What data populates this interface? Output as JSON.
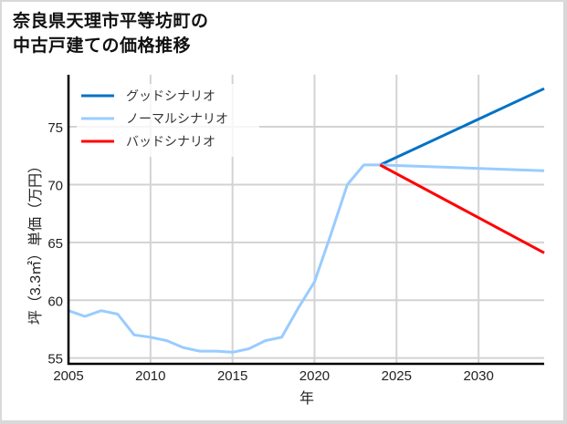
{
  "title_lines": [
    "奈良県天理市平等坊町の",
    "中古戸建ての価格推移"
  ],
  "chart_data": {
    "type": "line",
    "title": "奈良県天理市平等坊町の中古戸建ての価格推移",
    "xlabel": "年",
    "ylabel": "坪（3.3㎡）単価（万円）",
    "xlim": [
      2005,
      2034
    ],
    "ylim": [
      54.5,
      79.5
    ],
    "xticks": [
      2005,
      2010,
      2015,
      2020,
      2025,
      2030
    ],
    "yticks": [
      55,
      60,
      65,
      70,
      75
    ],
    "grid": true,
    "legend_position": "upper left",
    "series": [
      {
        "name": "グッドシナリオ",
        "color": "#0072c6",
        "x": [
          2024,
          2034
        ],
        "values": [
          71.7,
          78.3
        ]
      },
      {
        "name": "ノーマルシナリオ",
        "color": "#99ccff",
        "x": [
          2005,
          2006,
          2007,
          2008,
          2009,
          2010,
          2011,
          2012,
          2013,
          2014,
          2015,
          2016,
          2017,
          2018,
          2019,
          2020,
          2021,
          2022,
          2023,
          2024,
          2034
        ],
        "values": [
          59.1,
          58.6,
          59.1,
          58.8,
          57.0,
          56.8,
          56.5,
          55.9,
          55.6,
          55.6,
          55.5,
          55.8,
          56.5,
          56.8,
          59.3,
          61.6,
          65.7,
          70.0,
          71.7,
          71.7,
          71.2
        ]
      },
      {
        "name": "バッドシナリオ",
        "color": "#ff0000",
        "x": [
          2024,
          2034
        ],
        "values": [
          71.7,
          64.1
        ]
      }
    ]
  }
}
